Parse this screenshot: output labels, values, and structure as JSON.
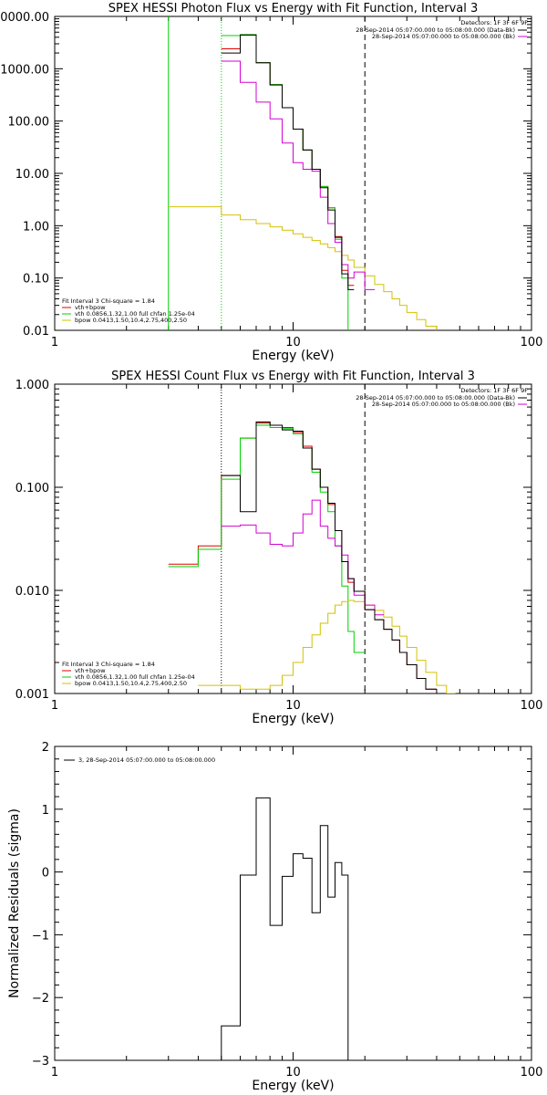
{
  "colors": {
    "data": "#000000",
    "total": "#e00000",
    "vth": "#00d000",
    "bpow": "#d4c200",
    "bk": "#d400d4"
  },
  "x_ticks": [
    "1",
    "10",
    "100"
  ],
  "chart_data": [
    {
      "type": "line",
      "title": "SPEX HESSI Photon Flux vs Energy with Fit Function, Interval 3",
      "xlabel": "Energy (keV)",
      "ylabel": "",
      "xlim": [
        1,
        100
      ],
      "ylim": [
        0.01,
        10000
      ],
      "x_scale": "log",
      "y_scale": "log",
      "y_tick_labels": [
        "0000.00",
        "1000.00",
        "100.00",
        "10.00",
        "1.00",
        "0.10",
        "0.01"
      ],
      "detectors_label": "Detectors: 1F 3F 6F 9F",
      "legend_right": [
        {
          "text": "28-Sep-2014 05:07:00.000 to 05:08:00.000 (Data-Bk)",
          "color": "#000000"
        },
        {
          "text": "28-Sep-2014 05:07:00.000 to 05:08:00.000 (Bk)",
          "color": "#d400d4"
        }
      ],
      "fit_header": "Fit Interval 3   Chi-square = 1.84",
      "legend_left": [
        {
          "text": "vth+bpow",
          "color": "#e00000"
        },
        {
          "text": "vth 0.0856,1.32,1.00  full chfan 1.25e-04",
          "color": "#00d000"
        },
        {
          "text": "bpow 0.0413,1.50,10.4,2.75,400,2.50",
          "color": "#d4c200"
        }
      ],
      "markers": [
        {
          "x": 3,
          "style": "solid",
          "color": "#00d000"
        },
        {
          "x": 5,
          "style": "dotted",
          "color": "#00d000"
        },
        {
          "x": 20,
          "style": "dashed",
          "color": "#000000"
        }
      ],
      "edges": [
        3,
        5,
        6,
        7,
        8,
        9,
        10,
        11,
        12,
        13,
        14,
        15,
        16,
        17,
        18,
        20,
        22,
        24,
        26,
        28,
        30,
        33,
        36,
        40,
        44
      ],
      "series": [
        {
          "name": "vth+bpow",
          "color": "#e00000",
          "from": 1,
          "values": [
            2400,
            4400,
            1300,
            500,
            180,
            70,
            28,
            12,
            5.6,
            2.2,
            0.62,
            0.14,
            0.072
          ]
        },
        {
          "name": "vth",
          "color": "#00d000",
          "from": 1,
          "values": [
            4300,
            4500,
            1300,
            500,
            180,
            70,
            28,
            12,
            5.6,
            2.2,
            0.55,
            0.1,
            0.005
          ]
        },
        {
          "name": "bpow",
          "color": "#d4c200",
          "from": 0,
          "values": [
            2.3,
            1.6,
            1.3,
            1.1,
            0.95,
            0.82,
            0.7,
            0.6,
            0.52,
            0.45,
            0.38,
            0.32,
            0.27,
            0.22,
            0.16,
            0.11,
            0.075,
            0.055,
            0.04,
            0.03,
            0.022,
            0.016,
            0.012,
            0.009
          ]
        },
        {
          "name": "Bk",
          "color": "#d400d4",
          "from": 1,
          "values": [
            1400,
            550,
            230,
            110,
            38,
            16,
            12,
            11,
            3.5,
            1.1,
            0.48,
            0.18,
            0.1,
            0.13,
            0.06
          ]
        },
        {
          "name": "Data-Bk",
          "color": "#000000",
          "from": 1,
          "values": [
            2000,
            4400,
            1300,
            490,
            180,
            70,
            28,
            12,
            5.3,
            2.0,
            0.6,
            0.12,
            0.06
          ]
        }
      ]
    },
    {
      "type": "line",
      "title": "SPEX HESSI Count Flux vs Energy with Fit Function, Interval 3",
      "xlabel": "Energy (keV)",
      "ylabel": "",
      "xlim": [
        1,
        100
      ],
      "ylim": [
        0.001,
        1
      ],
      "x_scale": "log",
      "y_scale": "log",
      "y_tick_labels": [
        "1.000",
        "0.100",
        "0.010",
        "0.001"
      ],
      "detectors_label": "Detectors: 1F 3F 6F 9F",
      "legend_right": [
        {
          "text": "28-Sep-2014 05:07:00.000 to 05:08:00.000 (Data-Bk)",
          "color": "#000000"
        },
        {
          "text": "28-Sep-2014 05:07:00.000 to 05:08:00.000 (Bk)",
          "color": "#d400d4"
        }
      ],
      "fit_header": "Fit Interval 3   Chi-square = 1.84",
      "legend_left": [
        {
          "text": "vth+bpow",
          "color": "#e00000"
        },
        {
          "text": "vth 0.0856,1.32,1.00  full chfan 1.25e-04",
          "color": "#00d000"
        },
        {
          "text": "bpow 0.0413,1.50,10.4,2.75,400,2.50",
          "color": "#d4c200"
        }
      ],
      "markers": [
        {
          "x": 5,
          "style": "dotted",
          "color": "#000000"
        },
        {
          "x": 20,
          "style": "dashed",
          "color": "#000000"
        }
      ],
      "edges": [
        3,
        4,
        5,
        6,
        7,
        8,
        9,
        10,
        11,
        12,
        13,
        14,
        15,
        16,
        17,
        18,
        20,
        22,
        24,
        26,
        28,
        30,
        33,
        36,
        40,
        44,
        48,
        52
      ],
      "series": [
        {
          "name": "vth+bpow",
          "color": "#e00000",
          "from": 0,
          "values": [
            0.018,
            0.027,
            0.13,
            0.3,
            0.42,
            0.4,
            0.38,
            0.34,
            0.25,
            0.15,
            0.1,
            0.068,
            0.038,
            0.019,
            0.012,
            0.0098,
            0.0065,
            0.0052,
            0.0042,
            0.0033,
            0.0025,
            0.0019,
            0.0014,
            0.0011
          ]
        },
        {
          "name": "vth",
          "color": "#00d000",
          "from": 0,
          "values": [
            0.017,
            0.025,
            0.12,
            0.3,
            0.4,
            0.38,
            0.37,
            0.33,
            0.24,
            0.14,
            0.09,
            0.058,
            0.027,
            0.011,
            0.004,
            0.0025
          ]
        },
        {
          "name": "bpow",
          "color": "#d4c200",
          "from": 1,
          "values": [
            0.0012,
            0.0012,
            0.0011,
            0.0011,
            0.0012,
            0.0015,
            0.002,
            0.0028,
            0.0037,
            0.0048,
            0.006,
            0.0072,
            0.0078,
            0.008,
            0.0078,
            0.0072,
            0.0064,
            0.0055,
            0.0045,
            0.0036,
            0.0028,
            0.0021,
            0.0016,
            0.0012,
            0.001
          ]
        },
        {
          "name": "Bk",
          "color": "#d400d4",
          "from": 2,
          "values": [
            0.042,
            0.043,
            0.036,
            0.028,
            0.027,
            0.036,
            0.055,
            0.075,
            0.042,
            0.032,
            0.027,
            0.022,
            0.013,
            0.009,
            0.0072,
            0.0058
          ]
        },
        {
          "name": "Data-Bk",
          "color": "#000000",
          "from": 2,
          "values": [
            0.13,
            0.058,
            0.43,
            0.4,
            0.36,
            0.35,
            0.24,
            0.15,
            0.1,
            0.07,
            0.038,
            0.019,
            0.013,
            0.0098,
            0.0065,
            0.0052,
            0.0042,
            0.0033,
            0.0025,
            0.0019,
            0.0014,
            0.0011
          ]
        }
      ]
    },
    {
      "type": "line",
      "title": "",
      "xlabel": "Energy (keV)",
      "ylabel": "Normalized Residuals (sigma)",
      "xlim": [
        1,
        100
      ],
      "ylim": [
        -3,
        2
      ],
      "x_scale": "log",
      "y_scale": "linear",
      "y_tick_labels": [
        "2",
        "1",
        "0",
        "−1",
        "−2",
        "−3"
      ],
      "legend_right": [],
      "legend_left": [],
      "legend_top": {
        "text": "3, 28-Sep-2014 05:07:00.000 to 05:08:00.000",
        "color": "#000000"
      },
      "markers": [],
      "edges": [
        5,
        6,
        7,
        8,
        9,
        10,
        11,
        12,
        13,
        14,
        15,
        16,
        17,
        18,
        20
      ],
      "series": [
        {
          "name": "residuals",
          "color": "#000000",
          "from": 0,
          "values": [
            -2.45,
            -0.05,
            1.18,
            -0.85,
            -0.07,
            0.29,
            0.22,
            -0.65,
            0.74,
            -0.4,
            0.15,
            -0.05
          ]
        }
      ]
    }
  ]
}
